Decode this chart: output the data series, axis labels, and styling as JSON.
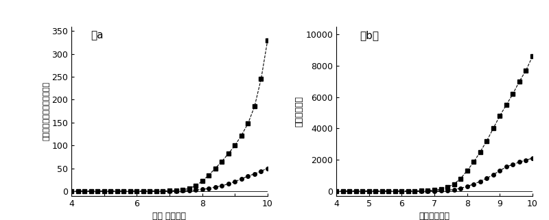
{
  "panel_a_label": "（a",
  "panel_b_label": "（b）",
  "xlabel_a": "电压 （伏特）",
  "xlabel_b": "电压（伏特）",
  "ylabel_a": "电流密度（毫安每平方厘米）",
  "ylabel_b": "亮度（尼特）",
  "xlim": [
    4,
    10
  ],
  "a_yticks": [
    0,
    50,
    100,
    150,
    200,
    250,
    300,
    350
  ],
  "a_ylim": [
    -10,
    360
  ],
  "b_yticks": [
    0,
    2000,
    4000,
    6000,
    8000,
    10000
  ],
  "b_ylim": [
    -300,
    10500
  ],
  "series1_x": [
    4.0,
    4.2,
    4.4,
    4.6,
    4.8,
    5.0,
    5.2,
    5.4,
    5.6,
    5.8,
    6.0,
    6.2,
    6.4,
    6.6,
    6.8,
    7.0,
    7.2,
    7.4,
    7.6,
    7.8,
    8.0,
    8.2,
    8.4,
    8.6,
    8.8,
    9.0,
    9.2,
    9.4,
    9.6,
    9.8,
    10.0
  ],
  "series1_a_y": [
    0,
    0,
    0,
    0,
    0,
    0,
    0,
    0,
    0,
    0,
    0,
    0.1,
    0.2,
    0.3,
    0.5,
    0.8,
    1.5,
    3.0,
    6.0,
    12.0,
    22.0,
    35.0,
    50.0,
    65.0,
    82.0,
    100.0,
    122.0,
    148.0,
    185.0,
    245.0,
    330.0
  ],
  "series2_a_y": [
    0,
    0,
    0,
    0,
    0,
    0,
    0,
    0,
    0,
    0,
    0,
    0,
    0.05,
    0.1,
    0.15,
    0.25,
    0.5,
    0.8,
    1.5,
    2.5,
    4.0,
    6.0,
    9.0,
    12.0,
    16.0,
    21.0,
    27.0,
    33.0,
    38.0,
    44.0,
    50.0
  ],
  "series1_b_y": [
    0,
    0,
    0,
    0,
    0,
    0,
    0,
    0,
    0,
    0,
    0,
    0,
    5,
    15,
    30,
    60,
    130,
    250,
    450,
    800,
    1300,
    1850,
    2500,
    3200,
    4000,
    4800,
    5500,
    6200,
    7000,
    7700,
    8600
  ],
  "series2_b_y": [
    0,
    0,
    0,
    0,
    0,
    0,
    0,
    0,
    0,
    0,
    0,
    0,
    0,
    2,
    5,
    10,
    25,
    50,
    100,
    180,
    300,
    450,
    620,
    820,
    1050,
    1300,
    1550,
    1700,
    1850,
    1980,
    2100
  ],
  "line_color": "#000000",
  "marker_square": "s",
  "marker_circle": "o",
  "marker_size": 4,
  "line_style": "--",
  "bg_color": "#ffffff"
}
